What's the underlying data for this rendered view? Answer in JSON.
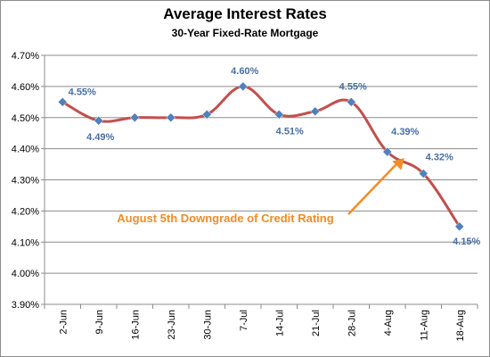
{
  "chart_data": {
    "type": "line",
    "title": "Average Interest Rates",
    "subtitle": "30-Year Fixed-Rate  Mortgage",
    "categories": [
      "2-Jun",
      "9-Jun",
      "16-Jun",
      "23-Jun",
      "30-Jun",
      "7-Jul",
      "14-Jul",
      "21-Jul",
      "28-Jul",
      "4-Aug",
      "11-Aug",
      "18-Aug"
    ],
    "series": [
      {
        "values": [
          4.55,
          4.49,
          4.5,
          4.5,
          4.51,
          4.6,
          4.51,
          4.52,
          4.55,
          4.39,
          4.32,
          4.15
        ],
        "line_color": "#c0504d",
        "marker_color": "#4f81bd"
      }
    ],
    "data_labels": [
      {
        "index": 0,
        "text": "4.55%"
      },
      {
        "index": 1,
        "text": "4.49%"
      },
      {
        "index": 5,
        "text": "4.60%"
      },
      {
        "index": 6,
        "text": "4.51%"
      },
      {
        "index": 8,
        "text": "4.55%"
      },
      {
        "index": 9,
        "text": "4.39%"
      },
      {
        "index": 10,
        "text": "4.32%"
      },
      {
        "index": 11,
        "text": "4.15%"
      }
    ],
    "ylim": [
      3.9,
      4.7
    ],
    "yticks": [
      3.9,
      4.0,
      4.1,
      4.2,
      4.3,
      4.4,
      4.5,
      4.6,
      4.7
    ],
    "ytick_labels": [
      "3.90%",
      "4.00%",
      "4.10%",
      "4.20%",
      "4.30%",
      "4.40%",
      "4.50%",
      "4.60%",
      "4.70%"
    ],
    "grid": true,
    "annotation": {
      "text": "August 5th Downgrade of Credit Rating",
      "color": "#f28c28",
      "points_to": {
        "x": "4-Aug",
        "y": 4.37
      }
    }
  }
}
